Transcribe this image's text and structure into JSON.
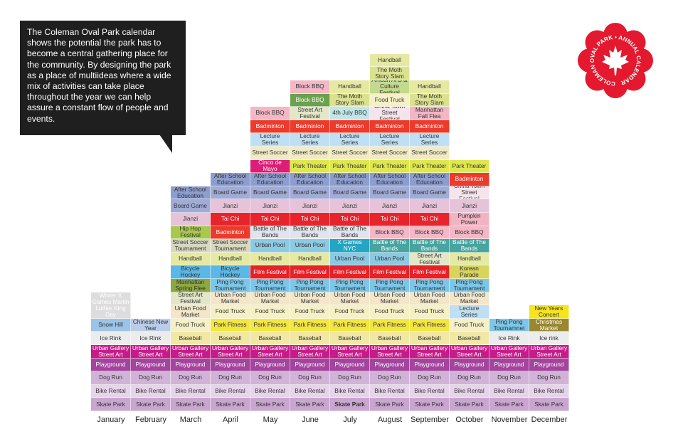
{
  "intro": {
    "text": "The Coleman Oval Park calendar shows the potential the park has to become a central gathering place for the community. By designing the park as a place of multiideas where a wide mix of activities can take place throughout the year we can help assure a constant flow of people and events."
  },
  "logo": {
    "text": "COLEMAN OVAL PARK • ANNUAL CALENDAR",
    "icon": "maple-leaf-icon",
    "color": "#e4182e"
  },
  "colors": {
    "Skate Park": "#c8a6cf",
    "Bike Rental": "#e6d4ea",
    "Dog Run": "#d2b3d8",
    "Playground": "#a3449d",
    "Urban Gallery Street Art": "#c61c8a",
    "Ice Rink": "#ececec",
    "Ice rink": "#ececec",
    "Snow Hill": "#9bc4e6",
    "Baseball": "#f1e8a6",
    "Park Fitness": "#f2e640",
    "Food Truck": "#f5f0c6",
    "Chinese New Year": "#b9cde8",
    "Winter X Games": "#174c80",
    "Martin Luther King Day": "#174c80",
    "Lecture Series": "#bfdff2",
    "Urban Food Market": "#f3e6c9",
    "Street Art Festival": "#e3e7c8",
    "Ping Pong Tournament": "#7cc7e9",
    "Ping Pong Tournamnet": "#7cc7e9",
    "Manhattan Spring Flee": "#8da741",
    "Bicycle Hockey": "#5bb7e5",
    "Film Festival": "#e42228",
    "Korean Parade": "#d7d55a",
    "Handball": "#e6e9a2",
    "Urban Pool": "#8cc9e3",
    "X Games NYC": "#23a5c3",
    "Street Soccer Tournament": "#d8d8c1",
    "Hip Hop Festival": "#a9c94e",
    "Battle of The Bands": "#e1e4ec",
    "Battle of The Bands dark": "#47a49f",
    "Block BBQ": "#f3b7c6",
    "Badminton": "#ec3a2b",
    "Jianzi": "#e6c3d9",
    "Tai Chi": "#e7232b",
    "Pumpkin Power": "#f2b3c3",
    "Board Game": "#a0acd6",
    "After School Education": "#8c9dce",
    "China Town Street Festival": "#f4e4ec",
    "Park Theater": "#dee74d",
    "Cinco de Mayo": "#dd1d77",
    "Street Soccer": "#f1eac5",
    "4th July BBQ": "#bfe6e9",
    "Manhattan Fall Flea": "#f3b6c5",
    "The Moth Story Slam": "#dbe28f",
    "African Arts & Culture Festival": "#c2da8d",
    "Block BBQ green": "#6ca04f",
    "New Years Concert": "#f6e41d",
    "Christmas Market": "#9a8732"
  },
  "chart_data": {
    "type": "table",
    "title": "",
    "months": [
      "January",
      "February",
      "March",
      "April",
      "May",
      "June",
      "July",
      "August",
      "September",
      "October",
      "November",
      "December"
    ],
    "columns": [
      [
        "Skate Park",
        "Bike Rental",
        "Dog Run",
        "Playground",
        "Urban Gallery Street Art",
        "Ice Rink",
        "Snow Hill",
        "Winter X Games Martin Luther King Day"
      ],
      [
        "Skate Park",
        "Bike Rental",
        "Dog Run",
        "Playground",
        "Urban Gallery Street Art",
        "Ice Rink",
        "Chinese New Year"
      ],
      [
        "Skate Park",
        "Bike Rental",
        "Dog Run",
        "Playground",
        "Urban Gallery Street Art",
        "Baseball",
        "Food Truck",
        "Urban Food Market",
        "Street Art Festival",
        "Manhattan Spring Flee",
        "Bicycle Hockey",
        "Handball",
        "Street Soccer Tournament",
        "Hip Hop Festival",
        "Jianzi",
        "Board Game",
        "After School Education"
      ],
      [
        "Skate Park",
        "Bike Rental",
        "Dog Run",
        "Playground",
        "Urban Gallery Street Art",
        "Baseball",
        "Park Fitness",
        "Food Truck",
        "Urban Food Market",
        "Ping Pong Tournament",
        "Bicycle Hockey",
        "Handball",
        "Street Soccer Tournament",
        "Badminton",
        "Tai Chi",
        "Jianzi",
        "Board Game",
        "After School Education"
      ],
      [
        "Skate Park",
        "Bike Rental",
        "Dog Run",
        "Playground",
        "Urban Gallery Street Art",
        "Baseball",
        "Park Fitness",
        "Food Truck",
        "Urban Food Market",
        "Ping Pong Tournament",
        "Film Festival",
        "Handball",
        "Urban Pool",
        "Battle of The Bands",
        "Tai Chi",
        "Jianzi",
        "Board Game",
        "After School Education",
        "Cinco de Mayo",
        "Street Soccer",
        "Lecture Series",
        "Badminton",
        "Block BBQ"
      ],
      [
        "Skate Park",
        "Bike Rental",
        "Dog Run",
        "Playground",
        "Urban Gallery Street Art",
        "Baseball",
        "Park Fitness",
        "Food Truck",
        "Urban Food Market",
        "Ping Pong Tournament",
        "Film Festival",
        "Handball",
        "Urban Pool",
        "Battle of The Bands",
        "Tai Chi",
        "Jianzi",
        "Board Game",
        "After School Education",
        "Park Theater",
        "Street Soccer",
        "Lecture Series",
        "Badminton",
        "Street Art Festival",
        "Block BBQ green",
        "Block BBQ"
      ],
      [
        "Skate Park",
        "Bike Rental",
        "Dog Run",
        "Playground",
        "Urban Gallery Street Art",
        "Baseball",
        "Park Fitness",
        "Food Truck",
        "Urban Food Market",
        "Ping Pong Tournament",
        "Film Festival",
        "Urban Pool",
        "X Games NYC",
        "Battle of The Bands",
        "Tai Chi",
        "Jianzi",
        "Board Game",
        "After School Education",
        "Park Theater",
        "Street Soccer",
        "Lecture Series",
        "Badminton",
        "4th July BBQ",
        "The Moth Story Slam",
        "Handball"
      ],
      [
        "Skate Park",
        "Bike Rental",
        "Dog Run",
        "Playground",
        "Urban Gallery Street Art",
        "Baseball",
        "Park Fitness",
        "Food Truck",
        "Urban Food Market",
        "Ping Pong Tournament",
        "Film Festival",
        "Urban Pool",
        "Battle of The Bands dark",
        "Block BBQ",
        "Tai Chi",
        "Jianzi",
        "Board Game",
        "After School Education",
        "Park Theater",
        "Street Soccer",
        "Lecture Series",
        "Badminton",
        "China Town Street Festival",
        "Food Truck",
        "African Arts & Culture Festival",
        "The Moth Story Slam",
        "Handball"
      ],
      [
        "Skate Park",
        "Bike Rental",
        "Dog Run",
        "Playground",
        "Urban Gallery Street Art",
        "Baseball",
        "Park Fitness",
        "Food Truck",
        "Urban Food Market",
        "Ping Pong Tournament",
        "Film Festival",
        "Street Art Festival",
        "Battle of The Bands dark",
        "Block BBQ",
        "Tai Chi",
        "Jianzi",
        "Board Game",
        "After School Education",
        "Park Theater",
        "Street Soccer",
        "Lecture Series",
        "Badminton",
        "Manhattan Fall Flea",
        "The Moth Story Slam",
        "Handball"
      ],
      [
        "Skate Park",
        "Bike Rental",
        "Dog Run",
        "Playground",
        "Urban Gallery Street Art",
        "Baseball",
        "Food Truck",
        "Lecture Series",
        "Urban Food Market",
        "Ping Pong Tournament",
        "Korean Parade",
        "Handball",
        "Battle of The Bands dark",
        "Block BBQ",
        "Pumpkin Power",
        "Jianzi",
        "China Town Street Festival",
        "Badminton",
        "Park Theater"
      ],
      [
        "Skate Park",
        "Bike Rental",
        "Dog Run",
        "Playground",
        "Urban Gallery Street Art",
        "Ice Rink",
        "Ping Pong Tournamnet"
      ],
      [
        "Skate Park",
        "Bike Rental",
        "Dog Run",
        "Playground",
        "Urban Gallery Street Art",
        "Ice rink",
        "Christmas Market",
        "New Years Concert"
      ]
    ],
    "labels": {
      "Urban Gallery Street Art": "Urban Gallery Street Art",
      "Winter X Games Martin Luther King Day": "Winter X Games Martin Luther King Day",
      "Battle of The Bands dark": "Battle of The Bands",
      "Block BBQ green": "Block BBQ"
    }
  }
}
